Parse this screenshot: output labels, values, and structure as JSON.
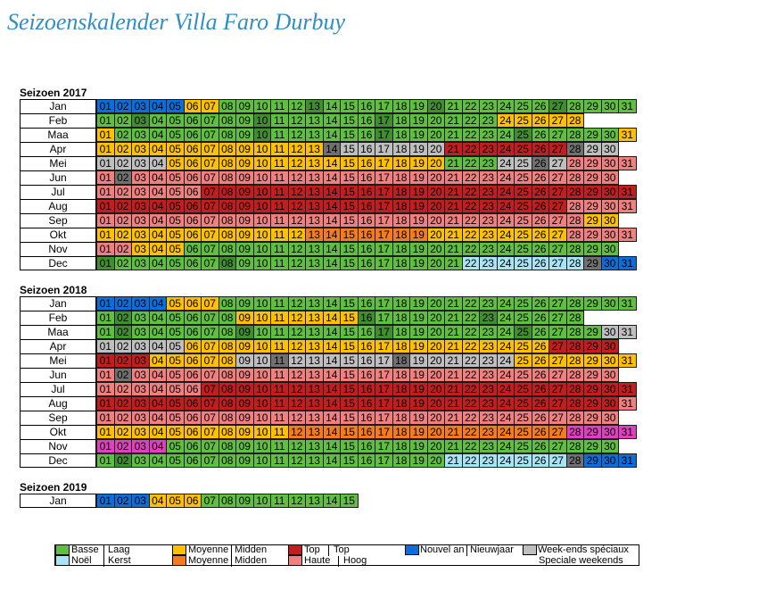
{
  "title": "Seizoenskalender Villa Faro Durbuy",
  "colors": {
    "B": "#5fbf3f",
    "BD": "#3f8f2f",
    "M": "#ffc000",
    "MD": "#f57c1c",
    "T": "#c41d1d",
    "H": "#f08080",
    "N": "#0a6fdc",
    "K": "#a5e5f5",
    "W": "#bfbfbf",
    "WD": "#707070",
    "P": "#e040c0"
  },
  "seasons": [
    {
      "title": "Seizoen 2017",
      "months": [
        {
          "name": "Jan",
          "days": [
            "N",
            "N",
            "N",
            "N",
            "N",
            "M",
            "M",
            "B",
            "B",
            "B",
            "B",
            "B",
            "BD",
            "B",
            "B",
            "B",
            "B",
            "B",
            "B",
            "BD",
            "B",
            "B",
            "B",
            "B",
            "B",
            "B",
            "BD",
            "B",
            "B",
            "B",
            "B"
          ]
        },
        {
          "name": "Feb",
          "days": [
            "B",
            "B",
            "BD",
            "B",
            "B",
            "B",
            "B",
            "B",
            "B",
            "BD",
            "B",
            "B",
            "B",
            "B",
            "B",
            "B",
            "BD",
            "B",
            "B",
            "B",
            "B",
            "B",
            "B",
            "M",
            "M",
            "M",
            "M",
            "M"
          ]
        },
        {
          "name": "Maa",
          "days": [
            "M",
            "B",
            "B",
            "B",
            "B",
            "B",
            "B",
            "B",
            "B",
            "BD",
            "B",
            "B",
            "B",
            "B",
            "B",
            "B",
            "BD",
            "B",
            "B",
            "B",
            "B",
            "B",
            "B",
            "B",
            "BD",
            "B",
            "B",
            "B",
            "B",
            "B",
            "M"
          ]
        },
        {
          "name": "Apr",
          "days": [
            "M",
            "M",
            "M",
            "M",
            "M",
            "M",
            "M",
            "M",
            "M",
            "M",
            "M",
            "M",
            "M",
            "WD",
            "W",
            "W",
            "W",
            "W",
            "W",
            "W",
            "T",
            "T",
            "T",
            "T",
            "T",
            "T",
            "T",
            "WD",
            "W",
            "W"
          ]
        },
        {
          "name": "Mei",
          "days": [
            "W",
            "W",
            "W",
            "W",
            "M",
            "M",
            "M",
            "M",
            "M",
            "M",
            "M",
            "M",
            "M",
            "M",
            "M",
            "M",
            "M",
            "M",
            "M",
            "M",
            "B",
            "B",
            "B",
            "W",
            "W",
            "WD",
            "W",
            "H",
            "H",
            "H",
            "H"
          ]
        },
        {
          "name": "Jun",
          "days": [
            "H",
            "WD",
            "H",
            "H",
            "H",
            "H",
            "H",
            "H",
            "H",
            "H",
            "H",
            "H",
            "H",
            "H",
            "H",
            "H",
            "H",
            "H",
            "H",
            "H",
            "H",
            "H",
            "H",
            "H",
            "H",
            "H",
            "H",
            "H",
            "H",
            "H"
          ]
        },
        {
          "name": "Jul",
          "days": [
            "H",
            "H",
            "H",
            "H",
            "H",
            "H",
            "T",
            "T",
            "T",
            "T",
            "T",
            "T",
            "T",
            "T",
            "T",
            "T",
            "T",
            "T",
            "T",
            "T",
            "T",
            "T",
            "T",
            "T",
            "T",
            "T",
            "T",
            "T",
            "T",
            "T",
            "T"
          ]
        },
        {
          "name": "Aug",
          "days": [
            "T",
            "T",
            "T",
            "T",
            "T",
            "T",
            "T",
            "T",
            "T",
            "T",
            "T",
            "T",
            "T",
            "T",
            "T",
            "T",
            "T",
            "T",
            "T",
            "T",
            "T",
            "T",
            "T",
            "T",
            "T",
            "T",
            "T",
            "H",
            "H",
            "H",
            "H"
          ]
        },
        {
          "name": "Sep",
          "days": [
            "H",
            "H",
            "H",
            "H",
            "H",
            "H",
            "H",
            "H",
            "H",
            "H",
            "H",
            "H",
            "H",
            "H",
            "H",
            "H",
            "H",
            "H",
            "H",
            "H",
            "H",
            "H",
            "H",
            "H",
            "H",
            "H",
            "H",
            "H",
            "M",
            "M"
          ]
        },
        {
          "name": "Okt",
          "days": [
            "M",
            "M",
            "M",
            "M",
            "M",
            "M",
            "M",
            "M",
            "M",
            "M",
            "M",
            "M",
            "MD",
            "MD",
            "MD",
            "MD",
            "MD",
            "MD",
            "MD",
            "M",
            "M",
            "M",
            "M",
            "M",
            "M",
            "M",
            "M",
            "H",
            "H",
            "H",
            "H"
          ]
        },
        {
          "name": "Nov",
          "days": [
            "H",
            "H",
            "M",
            "M",
            "M",
            "B",
            "B",
            "B",
            "B",
            "B",
            "B",
            "B",
            "B",
            "B",
            "B",
            "B",
            "B",
            "B",
            "B",
            "B",
            "B",
            "B",
            "B",
            "B",
            "B",
            "B",
            "B",
            "B",
            "B",
            "B"
          ]
        },
        {
          "name": "Dec",
          "days": [
            "BD",
            "B",
            "B",
            "B",
            "B",
            "B",
            "B",
            "BD",
            "B",
            "B",
            "B",
            "B",
            "B",
            "B",
            "B",
            "B",
            "B",
            "B",
            "B",
            "B",
            "B",
            "K",
            "K",
            "K",
            "K",
            "K",
            "K",
            "K",
            "WD",
            "N",
            "N"
          ]
        }
      ]
    },
    {
      "title": "Seizoen 2018",
      "months": [
        {
          "name": "Jan",
          "days": [
            "N",
            "N",
            "N",
            "N",
            "M",
            "M",
            "M",
            "B",
            "B",
            "B",
            "B",
            "B",
            "B",
            "B",
            "B",
            "B",
            "B",
            "B",
            "B",
            "B",
            "B",
            "B",
            "B",
            "B",
            "B",
            "B",
            "B",
            "B",
            "B",
            "B",
            "B"
          ]
        },
        {
          "name": "Feb",
          "days": [
            "B",
            "BD",
            "B",
            "B",
            "B",
            "B",
            "B",
            "B",
            "M",
            "M",
            "M",
            "M",
            "M",
            "M",
            "M",
            "BD",
            "B",
            "B",
            "B",
            "B",
            "B",
            "B",
            "BD",
            "B",
            "B",
            "B",
            "B",
            "B"
          ]
        },
        {
          "name": "Maa",
          "days": [
            "B",
            "BD",
            "B",
            "B",
            "B",
            "B",
            "B",
            "B",
            "BD",
            "B",
            "B",
            "B",
            "B",
            "B",
            "B",
            "B",
            "BD",
            "B",
            "B",
            "B",
            "B",
            "B",
            "B",
            "B",
            "BD",
            "B",
            "B",
            "B",
            "B",
            "W",
            "W"
          ]
        },
        {
          "name": "Apr",
          "days": [
            "W",
            "W",
            "W",
            "W",
            "W",
            "M",
            "M",
            "M",
            "M",
            "M",
            "M",
            "M",
            "M",
            "M",
            "M",
            "M",
            "M",
            "M",
            "M",
            "M",
            "M",
            "M",
            "M",
            "M",
            "M",
            "M",
            "T",
            "T",
            "T",
            "T"
          ]
        },
        {
          "name": "Mei",
          "days": [
            "T",
            "T",
            "T",
            "M",
            "M",
            "M",
            "M",
            "M",
            "W",
            "W",
            "WD",
            "W",
            "W",
            "W",
            "W",
            "W",
            "W",
            "WD",
            "W",
            "W",
            "W",
            "W",
            "W",
            "W",
            "M",
            "M",
            "M",
            "M",
            "M",
            "M",
            "M"
          ]
        },
        {
          "name": "Jun",
          "days": [
            "H",
            "WD",
            "H",
            "H",
            "H",
            "H",
            "H",
            "H",
            "H",
            "H",
            "H",
            "H",
            "H",
            "H",
            "H",
            "H",
            "H",
            "H",
            "H",
            "H",
            "H",
            "H",
            "H",
            "H",
            "H",
            "H",
            "H",
            "H",
            "H",
            "H"
          ]
        },
        {
          "name": "Jul",
          "days": [
            "H",
            "H",
            "H",
            "H",
            "H",
            "H",
            "T",
            "T",
            "T",
            "T",
            "T",
            "T",
            "T",
            "T",
            "T",
            "T",
            "T",
            "T",
            "T",
            "T",
            "T",
            "T",
            "T",
            "T",
            "T",
            "T",
            "T",
            "T",
            "T",
            "T",
            "T"
          ]
        },
        {
          "name": "Aug",
          "days": [
            "T",
            "T",
            "T",
            "T",
            "T",
            "T",
            "T",
            "T",
            "T",
            "T",
            "T",
            "T",
            "T",
            "T",
            "T",
            "T",
            "T",
            "T",
            "T",
            "T",
            "T",
            "T",
            "T",
            "T",
            "T",
            "T",
            "T",
            "T",
            "T",
            "T",
            "H"
          ]
        },
        {
          "name": "Sep",
          "days": [
            "H",
            "H",
            "H",
            "H",
            "H",
            "H",
            "H",
            "H",
            "H",
            "H",
            "H",
            "H",
            "H",
            "H",
            "H",
            "H",
            "H",
            "H",
            "H",
            "H",
            "H",
            "H",
            "H",
            "H",
            "H",
            "H",
            "H",
            "H",
            "H",
            "H"
          ]
        },
        {
          "name": "Okt",
          "days": [
            "M",
            "M",
            "M",
            "M",
            "M",
            "M",
            "M",
            "M",
            "M",
            "M",
            "M",
            "MD",
            "MD",
            "MD",
            "MD",
            "MD",
            "MD",
            "MD",
            "MD",
            "MD",
            "MD",
            "MD",
            "MD",
            "MD",
            "MD",
            "MD",
            "MD",
            "P",
            "P",
            "P",
            "P"
          ]
        },
        {
          "name": "Nov",
          "days": [
            "P",
            "P",
            "P",
            "P",
            "B",
            "B",
            "B",
            "B",
            "B",
            "B",
            "B",
            "B",
            "B",
            "B",
            "B",
            "B",
            "B",
            "B",
            "B",
            "B",
            "B",
            "B",
            "B",
            "B",
            "B",
            "B",
            "B",
            "B",
            "B",
            "B"
          ]
        },
        {
          "name": "Dec",
          "days": [
            "B",
            "BD",
            "B",
            "B",
            "B",
            "B",
            "B",
            "B",
            "B",
            "B",
            "B",
            "B",
            "B",
            "B",
            "B",
            "B",
            "B",
            "B",
            "B",
            "B",
            "K",
            "K",
            "K",
            "K",
            "K",
            "K",
            "K",
            "WD",
            "N",
            "N",
            "N"
          ]
        }
      ]
    },
    {
      "title": "Seizoen 2019",
      "months": [
        {
          "name": "Jan",
          "days": [
            "N",
            "N",
            "N",
            "M",
            "M",
            "M",
            "B",
            "B",
            "B",
            "B",
            "B",
            "B",
            "B",
            "B",
            "B"
          ]
        }
      ]
    }
  ],
  "legend": {
    "basse": "Basse",
    "laag": "Laag",
    "noel": "Noël",
    "kerst": "Kerst",
    "moyenne1": "Moyenne",
    "midden1": "Midden",
    "moyenne2": "Moyenne",
    "midden2": "Midden",
    "top": "Top",
    "top_nl": "Top",
    "haute": "Haute",
    "hoog": "Hoog",
    "nouvel_an": "Nouvel an",
    "nieuwjaar": "Nieuwjaar",
    "weekends_fr": "Week-ends spéciaux",
    "weekends_nl": "Speciale weekends"
  }
}
